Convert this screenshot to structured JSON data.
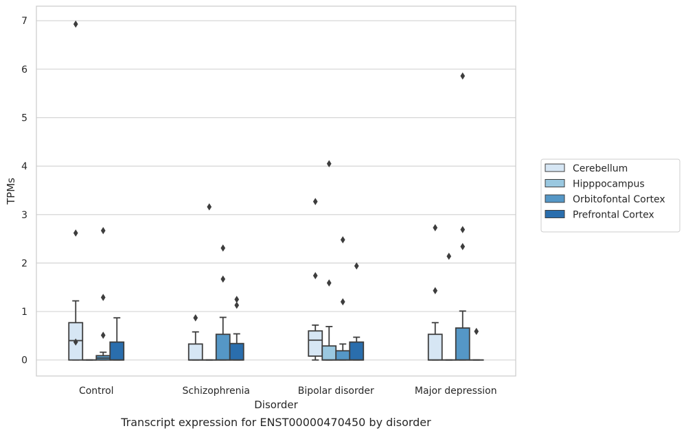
{
  "caption": "Transcript expression for ENST00000470450 by disorder",
  "chart_data": {
    "type": "box",
    "xlabel": "Disorder",
    "ylabel": "TPMs",
    "ylim": [
      -0.33,
      7.3
    ],
    "yticks": [
      0,
      1,
      2,
      3,
      4,
      5,
      6,
      7
    ],
    "categories": [
      "Control",
      "Schizophrenia",
      "Bipolar disorder",
      "Major depression"
    ],
    "grid": "horizontal",
    "legend_position": "right",
    "series": [
      {
        "name": "Cerebellum",
        "color": "#d6e6f4",
        "boxes": [
          {
            "q1": 0.0,
            "median": 0.4,
            "q3": 0.77,
            "whisker_low": 0.0,
            "whisker_high": 1.22,
            "outliers": [
              6.93,
              2.62,
              0.37
            ]
          },
          {
            "q1": 0.0,
            "median": 0.0,
            "q3": 0.33,
            "whisker_low": 0.0,
            "whisker_high": 0.58,
            "outliers": [
              0.87
            ]
          },
          {
            "q1": 0.08,
            "median": 0.41,
            "q3": 0.6,
            "whisker_low": 0.0,
            "whisker_high": 0.72,
            "outliers": [
              3.27,
              1.74
            ]
          },
          {
            "q1": 0.0,
            "median": 0.0,
            "q3": 0.53,
            "whisker_low": 0.0,
            "whisker_high": 0.77,
            "outliers": [
              2.73,
              1.43
            ]
          }
        ]
      },
      {
        "name": "Hipppocampus",
        "color": "#9ac8e0",
        "boxes": [
          {
            "q1": 0.0,
            "median": 0.0,
            "q3": 0.0,
            "whisker_low": 0.0,
            "whisker_high": 0.0,
            "outliers": []
          },
          {
            "q1": 0.0,
            "median": 0.0,
            "q3": 0.0,
            "whisker_low": 0.0,
            "whisker_high": 0.0,
            "outliers": [
              3.16
            ]
          },
          {
            "q1": 0.0,
            "median": 0.0,
            "q3": 0.29,
            "whisker_low": 0.0,
            "whisker_high": 0.69,
            "outliers": [
              4.05,
              1.59
            ]
          },
          {
            "q1": 0.0,
            "median": 0.0,
            "q3": 0.0,
            "whisker_low": 0.0,
            "whisker_high": 0.0,
            "outliers": [
              2.14
            ]
          }
        ]
      },
      {
        "name": "Orbitofontal Cortex",
        "color": "#5597c6",
        "boxes": [
          {
            "q1": 0.0,
            "median": 0.04,
            "q3": 0.09,
            "whisker_low": 0.0,
            "whisker_high": 0.16,
            "outliers": [
              2.67,
              1.29,
              0.51
            ]
          },
          {
            "q1": 0.0,
            "median": 0.0,
            "q3": 0.53,
            "whisker_low": 0.0,
            "whisker_high": 0.88,
            "outliers": [
              2.31,
              1.67
            ]
          },
          {
            "q1": 0.0,
            "median": 0.0,
            "q3": 0.19,
            "whisker_low": 0.0,
            "whisker_high": 0.33,
            "outliers": [
              2.48,
              1.2
            ]
          },
          {
            "q1": 0.0,
            "median": 0.0,
            "q3": 0.66,
            "whisker_low": 0.0,
            "whisker_high": 1.01,
            "outliers": [
              5.86,
              2.69,
              2.34
            ]
          }
        ]
      },
      {
        "name": "Prefrontal Cortex",
        "color": "#2a6ead",
        "boxes": [
          {
            "q1": 0.0,
            "median": 0.0,
            "q3": 0.37,
            "whisker_low": 0.0,
            "whisker_high": 0.87,
            "outliers": []
          },
          {
            "q1": 0.0,
            "median": 0.0,
            "q3": 0.34,
            "whisker_low": 0.0,
            "whisker_high": 0.54,
            "outliers": [
              1.25,
              1.13
            ]
          },
          {
            "q1": 0.0,
            "median": 0.0,
            "q3": 0.37,
            "whisker_low": 0.0,
            "whisker_high": 0.47,
            "outliers": [
              1.94
            ]
          },
          {
            "q1": 0.0,
            "median": 0.0,
            "q3": 0.0,
            "whisker_low": 0.0,
            "whisker_high": 0.0,
            "outliers": [
              0.59
            ]
          }
        ]
      }
    ]
  }
}
